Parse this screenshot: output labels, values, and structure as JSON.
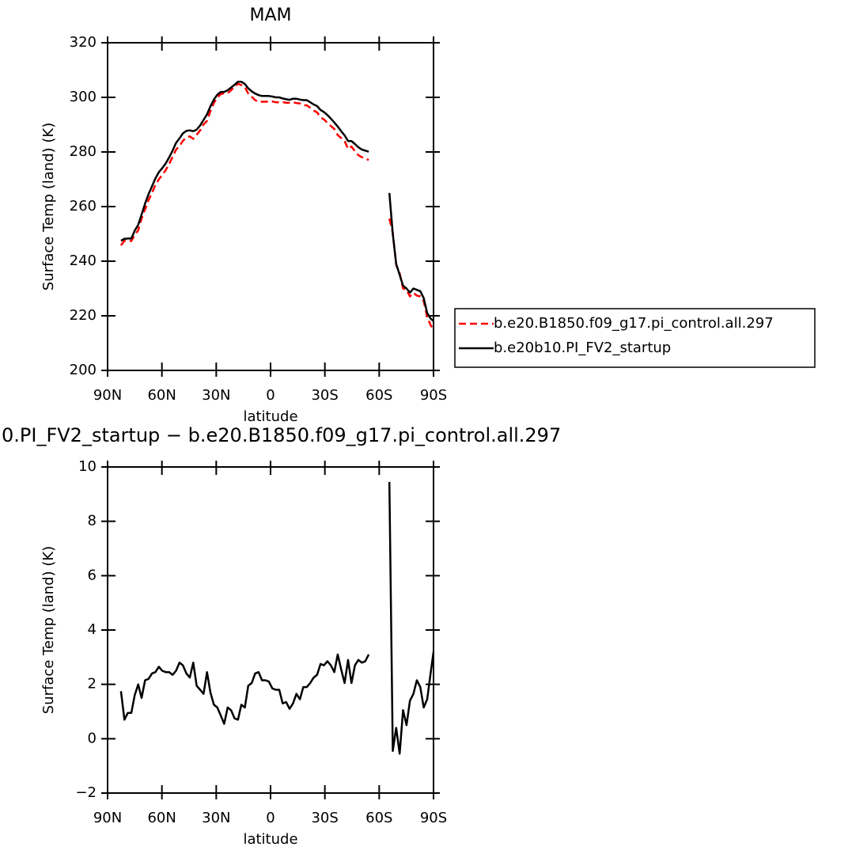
{
  "chart_data": [
    {
      "type": "line",
      "title": "MAM",
      "xlabel": "latitude",
      "ylabel": "Surface Temp (land) (K)",
      "xlim": [
        90,
        -90
      ],
      "xticks": [
        {
          "value": 90,
          "label": "90N"
        },
        {
          "value": 60,
          "label": "60N"
        },
        {
          "value": 30,
          "label": "30N"
        },
        0,
        {
          "value": -30,
          "label": "30S"
        },
        {
          "value": -60,
          "label": "60S"
        },
        {
          "value": -90,
          "label": "90S"
        }
      ],
      "ylim": [
        200,
        320
      ],
      "yticks": [
        200,
        220,
        240,
        260,
        280,
        300,
        320
      ],
      "legend": "right",
      "x": [
        82.6,
        80.7,
        78.8,
        76.9,
        75.0,
        73.1,
        71.2,
        69.3,
        67.4,
        65.5,
        63.6,
        61.7,
        59.8,
        57.9,
        56.0,
        54.1,
        52.2,
        50.3,
        48.4,
        46.5,
        44.6,
        42.7,
        40.8,
        38.9,
        37.0,
        35.1,
        33.2,
        31.3,
        29.4,
        27.5,
        25.6,
        23.7,
        21.8,
        19.9,
        18.0,
        16.1,
        14.2,
        12.3,
        10.4,
        8.5,
        6.6,
        4.7,
        2.8,
        0.9,
        -1.0,
        -2.9,
        -4.8,
        -6.7,
        -8.6,
        -10.5,
        -12.4,
        -14.3,
        -16.2,
        -18.1,
        -20.0,
        -21.9,
        -23.8,
        -25.7,
        -27.6,
        -29.5,
        -31.4,
        -33.3,
        -35.2,
        -37.1,
        -39.0,
        -40.9,
        -42.8,
        -44.7,
        -46.6,
        -48.5,
        -50.4,
        -52.3,
        -54.2,
        -56.1,
        -65.6,
        -67.5,
        -69.4,
        -71.3,
        -73.2,
        -75.1,
        -77.0,
        -78.9,
        -80.8,
        -82.7,
        -84.6,
        -86.5,
        -88.4,
        -90.0
      ],
      "series": [
        {
          "name": "b.e20.B1850.f09_g17.pi_control.all.297",
          "color": "#ff0000",
          "dashed": true,
          "values": [
            245.8,
            247.5,
            247.4,
            247.4,
            249.6,
            251.3,
            255.6,
            259.0,
            262.3,
            265.0,
            267.9,
            270.0,
            271.6,
            273.4,
            275.6,
            278.2,
            280.8,
            282.2,
            284.1,
            285.3,
            285.7,
            284.8,
            286.3,
            287.9,
            290.1,
            291.4,
            295.0,
            298.0,
            299.9,
            301.2,
            301.5,
            301.5,
            302.6,
            303.9,
            305.0,
            304.5,
            303.8,
            301.4,
            300.2,
            299.0,
            298.4,
            298.4,
            298.4,
            298.4,
            298.5,
            298.2,
            298.2,
            298.3,
            298.0,
            298.0,
            298.2,
            297.9,
            297.8,
            297.1,
            297.1,
            296.2,
            295.2,
            294.5,
            292.7,
            291.9,
            290.7,
            289.5,
            288.4,
            286.2,
            285.1,
            284.1,
            281.1,
            282.0,
            280.2,
            278.8,
            278.1,
            277.7,
            277.0,
            null,
            255.6,
            250.5,
            238.6,
            235.6,
            230.0,
            229.5,
            227.1,
            228.4,
            227.4,
            227.1,
            225.4,
            219.6,
            216.6,
            214.8
          ]
        },
        {
          "name": "b.e20b10.PI_FV2_startup",
          "color": "#000000",
          "dashed": false,
          "values": [
            247.5,
            248.2,
            248.3,
            248.3,
            251.2,
            253.3,
            257.1,
            261.1,
            264.5,
            267.4,
            270.3,
            272.6,
            274.1,
            275.8,
            278.0,
            280.5,
            283.3,
            285.0,
            286.8,
            287.7,
            287.9,
            287.6,
            288.2,
            289.7,
            291.7,
            293.8,
            296.7,
            299.2,
            301.0,
            302.0,
            302.0,
            302.6,
            303.6,
            304.6,
            305.7,
            305.7,
            304.9,
            303.3,
            302.2,
            301.4,
            300.8,
            300.5,
            300.5,
            300.5,
            300.3,
            300.0,
            300.0,
            299.6,
            299.3,
            299.1,
            299.5,
            299.5,
            299.2,
            299.0,
            299.0,
            298.2,
            297.4,
            296.8,
            295.4,
            294.6,
            293.5,
            292.2,
            290.8,
            289.3,
            287.6,
            286.1,
            284.0,
            284.0,
            282.9,
            281.7,
            280.9,
            280.5,
            280.1,
            null,
            265.0,
            250.0,
            239.0,
            235.0,
            231.0,
            230.0,
            228.5,
            230.0,
            229.5,
            229.0,
            226.5,
            221.0,
            219.0,
            218.0
          ]
        }
      ]
    },
    {
      "type": "line",
      "title": "0.PI_FV2_startup − b.e20.B1850.f09_g17.pi_control.all.297",
      "xlabel": "latitude",
      "ylabel": "Surface Temp (land) (K)",
      "xlim": [
        90,
        -90
      ],
      "xticks": [
        {
          "value": 90,
          "label": "90N"
        },
        {
          "value": 60,
          "label": "60N"
        },
        {
          "value": 30,
          "label": "30N"
        },
        0,
        {
          "value": -30,
          "label": "30S"
        },
        {
          "value": -60,
          "label": "60S"
        },
        {
          "value": -90,
          "label": "90S"
        }
      ],
      "ylim": [
        -2,
        10
      ],
      "yticks": [
        {
          "value": -2,
          "label": "−2"
        },
        0,
        2,
        4,
        6,
        8,
        10
      ],
      "x": [
        82.6,
        80.7,
        78.8,
        76.9,
        75.0,
        73.1,
        71.2,
        69.3,
        67.4,
        65.5,
        63.6,
        61.7,
        59.8,
        57.9,
        56.0,
        54.1,
        52.2,
        50.3,
        48.4,
        46.5,
        44.6,
        42.7,
        40.8,
        38.9,
        37.0,
        35.1,
        33.2,
        31.3,
        29.4,
        27.5,
        25.6,
        23.7,
        21.8,
        19.9,
        18.0,
        16.1,
        14.2,
        12.3,
        10.4,
        8.5,
        6.6,
        4.7,
        2.8,
        0.9,
        -1.0,
        -2.9,
        -4.8,
        -6.7,
        -8.6,
        -10.5,
        -12.4,
        -14.3,
        -16.2,
        -18.1,
        -20.0,
        -21.9,
        -23.8,
        -25.7,
        -27.6,
        -29.5,
        -31.4,
        -33.3,
        -35.2,
        -37.1,
        -39.0,
        -40.9,
        -42.8,
        -44.7,
        -46.6,
        -48.5,
        -50.4,
        -52.3,
        -54.2,
        -56.1,
        -65.6,
        -67.5,
        -69.4,
        -71.3,
        -73.2,
        -75.1,
        -77.0,
        -78.9,
        -80.8,
        -82.7,
        -84.6,
        -86.5,
        -88.4,
        -90.0
      ],
      "series": [
        {
          "color": "#000000",
          "dashed": false,
          "values": [
            1.75,
            0.7,
            0.95,
            0.95,
            1.6,
            2.0,
            1.5,
            2.15,
            2.2,
            2.4,
            2.45,
            2.65,
            2.5,
            2.45,
            2.45,
            2.35,
            2.5,
            2.8,
            2.7,
            2.4,
            2.25,
            2.8,
            1.95,
            1.8,
            1.65,
            2.45,
            1.7,
            1.25,
            1.15,
            0.85,
            0.55,
            1.15,
            1.05,
            0.75,
            0.7,
            1.25,
            1.15,
            1.95,
            2.05,
            2.4,
            2.45,
            2.15,
            2.15,
            2.1,
            1.85,
            1.8,
            1.8,
            1.3,
            1.35,
            1.1,
            1.3,
            1.65,
            1.45,
            1.9,
            1.9,
            2.05,
            2.25,
            2.35,
            2.75,
            2.7,
            2.85,
            2.7,
            2.45,
            3.1,
            2.55,
            2.05,
            2.9,
            2.05,
            2.7,
            2.9,
            2.8,
            2.85,
            3.1,
            null,
            9.45,
            -0.45,
            0.4,
            -0.55,
            1.05,
            0.5,
            1.4,
            1.65,
            2.15,
            1.9,
            1.15,
            1.45,
            2.4,
            3.2
          ]
        }
      ]
    }
  ]
}
